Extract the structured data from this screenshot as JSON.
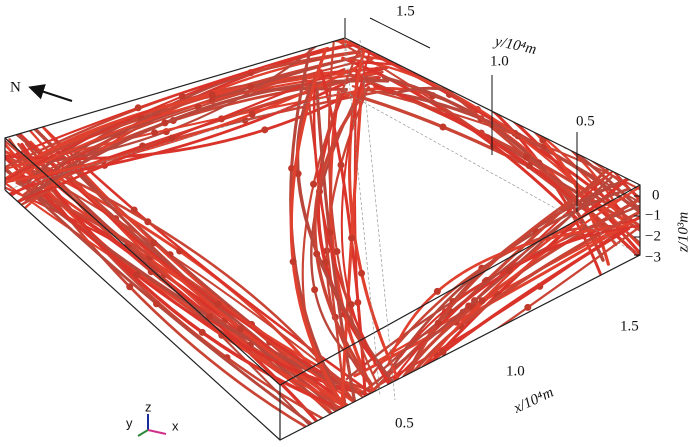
{
  "compass": "N",
  "y_axis": {
    "label": "y/10⁴m",
    "ticks": [
      "1.5",
      "1.0",
      "0.5"
    ]
  },
  "x_axis": {
    "label": "x/10⁴m",
    "ticks": [
      "0.5",
      "1.0",
      "1.5"
    ]
  },
  "z_axis": {
    "label": "z/10³m",
    "ticks": [
      "0",
      "−1",
      "−2",
      "−3"
    ]
  },
  "triad": {
    "x": "x",
    "y": "y",
    "z": "z"
  }
}
